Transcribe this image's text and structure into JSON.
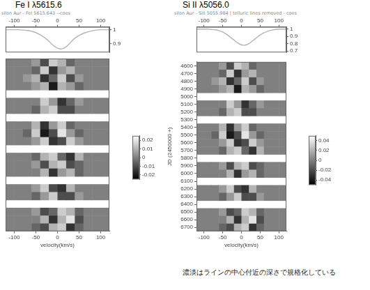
{
  "chart_data": [
    {
      "type": "heatmap",
      "title": "Fe I λ5615.6",
      "subtitle": "silon Aur - FeI 5615.643 --coes",
      "x_label": "velocity(km/s)",
      "xlim": [
        -120,
        120
      ],
      "xticks": [
        -100,
        -50,
        0,
        50,
        100
      ],
      "ylim": [
        6750,
        4550
      ],
      "grid": false,
      "tick_labels": "x",
      "profile": {
        "type": "line",
        "color": "#b4b4b4",
        "x": [
          -120,
          -110,
          -100,
          -90,
          -80,
          -70,
          -60,
          -50,
          -40,
          -30,
          -20,
          -10,
          0,
          10,
          20,
          30,
          40,
          50,
          60,
          70,
          80,
          90,
          100,
          110,
          120
        ],
        "values": [
          1,
          1,
          1,
          1,
          0.998,
          0.995,
          0.99,
          0.98,
          0.965,
          0.945,
          0.92,
          0.89,
          0.87,
          0.865,
          0.88,
          0.91,
          0.94,
          0.96,
          0.975,
          0.985,
          0.993,
          0.998,
          1,
          1,
          1
        ],
        "ylim": [
          0.84,
          1.02
        ],
        "yticks": [
          0.9,
          1
        ]
      },
      "cells": {
        "x": [
          -110,
          -90,
          -70,
          -50,
          -30,
          -10,
          10,
          30,
          50,
          70,
          90,
          110
        ],
        "y": [
          4600,
          4700,
          4800,
          4900,
          5000,
          5100,
          5200,
          5300,
          5400,
          5500,
          5600,
          5700,
          5800,
          5900,
          6000,
          6100,
          6200,
          6300,
          6400,
          6500,
          6600,
          6700
        ],
        "values": [
          [
            0,
            0,
            0,
            0.005,
            -0.01,
            0.015,
            0.01,
            -0.005,
            0,
            0,
            0,
            0
          ],
          [
            0,
            0,
            0,
            -0.005,
            0.015,
            -0.015,
            0.005,
            0.01,
            0,
            0,
            0,
            0
          ],
          [
            0,
            0,
            0.005,
            0.01,
            -0.015,
            -0.005,
            0.015,
            -0.01,
            0.005,
            0,
            0,
            0
          ],
          [
            0,
            0,
            0,
            0.005,
            0.01,
            -0.02,
            0.01,
            0.005,
            -0.005,
            0,
            0,
            0
          ],
          null,
          [
            0,
            0,
            0,
            0,
            0.015,
            0.005,
            -0.015,
            -0.005,
            0.005,
            0,
            0,
            0
          ],
          [
            0,
            0,
            0,
            -0.005,
            0.01,
            0.015,
            -0.01,
            -0.01,
            0,
            0,
            0,
            0
          ],
          null,
          [
            0,
            0,
            0,
            0.01,
            -0.015,
            0.005,
            0.015,
            -0.005,
            0,
            0,
            0,
            0
          ],
          [
            0,
            0,
            -0.005,
            0.015,
            -0.02,
            -0.01,
            0.02,
            0.005,
            -0.005,
            0,
            0,
            0
          ],
          [
            0,
            0,
            0,
            0.005,
            0.015,
            -0.015,
            -0.01,
            0.015,
            0.005,
            0,
            0,
            0
          ],
          null,
          [
            0,
            0,
            0,
            -0.005,
            0.01,
            0.015,
            -0.005,
            -0.015,
            0.01,
            0,
            0,
            0
          ],
          [
            0,
            0,
            0,
            0.005,
            -0.01,
            0.01,
            0.015,
            -0.01,
            -0.005,
            0,
            0,
            0
          ],
          [
            0,
            0,
            0,
            0,
            0.01,
            -0.015,
            0.005,
            0.01,
            -0.005,
            0,
            0,
            0
          ],
          null,
          [
            0,
            0,
            0,
            0.005,
            0.015,
            -0.01,
            -0.015,
            0.01,
            0,
            0,
            0,
            0
          ],
          [
            0,
            0,
            0,
            -0.005,
            0.005,
            0.015,
            -0.01,
            -0.01,
            0.005,
            0,
            0,
            0
          ],
          null,
          [
            0,
            0,
            0,
            0.005,
            -0.01,
            -0.005,
            0.015,
            0.01,
            -0.005,
            0,
            0,
            0
          ],
          [
            0,
            0,
            0,
            0,
            0.01,
            -0.015,
            0.01,
            0.02,
            -0.01,
            0,
            0,
            0
          ],
          [
            0,
            0,
            0,
            -0.005,
            -0.01,
            0.01,
            0.015,
            -0.015,
            -0.005,
            0,
            0,
            0
          ]
        ]
      },
      "colorbar": {
        "range": [
          -0.025,
          0.025
        ],
        "ticks": [
          -0.02,
          -0.01,
          0,
          0.01,
          0.02
        ]
      }
    },
    {
      "type": "heatmap",
      "title": "Si II λ5056.0",
      "subtitle": "silon Aur - SiII 5055.984 | telluric lines removed - coes",
      "x_label": "velocity(km/s)",
      "y_label": "JD (2450000 +)",
      "xlim": [
        -120,
        120
      ],
      "xticks": [
        -100,
        -50,
        0,
        50,
        100
      ],
      "ylim": [
        6750,
        4550
      ],
      "yticks": [
        4600,
        4700,
        4800,
        4900,
        5000,
        5100,
        5200,
        5300,
        5400,
        5500,
        5600,
        5700,
        5800,
        5900,
        6000,
        6100,
        6200,
        6300,
        6400,
        6500,
        6600,
        6700
      ],
      "grid": false,
      "profile": {
        "type": "line",
        "color": "#b4b4b4",
        "x": [
          -120,
          -110,
          -100,
          -90,
          -80,
          -70,
          -60,
          -50,
          -40,
          -30,
          -20,
          -10,
          0,
          10,
          20,
          30,
          40,
          50,
          60,
          70,
          80,
          90,
          100,
          110,
          120
        ],
        "values": [
          1,
          1,
          1,
          1,
          0.995,
          0.99,
          0.98,
          0.96,
          0.93,
          0.89,
          0.85,
          0.81,
          0.785,
          0.78,
          0.8,
          0.84,
          0.88,
          0.92,
          0.95,
          0.97,
          0.985,
          0.995,
          1,
          1,
          1
        ],
        "ylim": [
          0.68,
          1.03
        ],
        "yticks": [
          0.7,
          0.8,
          0.9,
          1
        ]
      },
      "cells": {
        "x": [
          -110,
          -90,
          -70,
          -50,
          -30,
          -10,
          10,
          30,
          50,
          70,
          90,
          110
        ],
        "y": [
          4600,
          4700,
          4800,
          4900,
          5000,
          5100,
          5200,
          5300,
          5400,
          5500,
          5600,
          5700,
          5800,
          5900,
          6000,
          6100,
          6200,
          6300,
          6400,
          6500,
          6600,
          6700
        ],
        "values": [
          [
            0,
            0,
            0,
            0.01,
            -0.02,
            0.03,
            0.02,
            -0.01,
            0,
            0,
            0,
            0
          ],
          [
            0,
            0,
            0,
            -0.01,
            0.03,
            -0.03,
            0.01,
            0.02,
            0,
            0,
            0,
            0
          ],
          [
            0,
            0,
            0.01,
            0.02,
            -0.03,
            -0.01,
            0.03,
            -0.02,
            0.01,
            0,
            0,
            0
          ],
          [
            0,
            0,
            0,
            0.01,
            0.02,
            -0.04,
            0.02,
            0.01,
            -0.01,
            0,
            0,
            0
          ],
          null,
          [
            0,
            0,
            0,
            0,
            0.03,
            0.01,
            -0.03,
            -0.01,
            0.01,
            0,
            0,
            0
          ],
          [
            0,
            0,
            0,
            -0.01,
            0.02,
            0.03,
            -0.02,
            -0.02,
            0,
            0,
            0,
            0
          ],
          null,
          [
            0,
            0,
            0,
            0.02,
            -0.03,
            0.01,
            0.03,
            -0.01,
            0,
            0,
            0,
            0
          ],
          [
            0,
            0,
            -0.01,
            0.03,
            -0.04,
            -0.02,
            0.04,
            0.01,
            -0.01,
            0,
            0,
            0
          ],
          [
            0,
            0,
            0,
            0.01,
            0.03,
            -0.03,
            -0.02,
            0.03,
            0.01,
            0,
            0,
            0
          ],
          [
            0,
            0,
            0,
            -0.01,
            0.02,
            0.03,
            -0.01,
            -0.03,
            0.02,
            0,
            0,
            0
          ],
          null,
          [
            0,
            0,
            0,
            0.01,
            -0.02,
            0.02,
            0.03,
            -0.02,
            -0.01,
            0,
            0,
            0
          ],
          [
            0,
            0,
            0,
            0,
            0.02,
            -0.03,
            0.01,
            0.02,
            -0.01,
            0,
            0,
            0
          ],
          null,
          [
            0,
            0,
            0,
            0.01,
            0.03,
            -0.02,
            -0.03,
            0.02,
            0,
            0,
            0,
            0
          ],
          [
            0,
            0,
            0,
            -0.01,
            0.01,
            0.03,
            -0.02,
            -0.02,
            0.01,
            0,
            0,
            0
          ],
          null,
          [
            0,
            0,
            0,
            0.01,
            -0.02,
            -0.01,
            0.03,
            0.02,
            -0.01,
            0,
            0,
            0
          ],
          [
            0,
            0,
            0,
            0,
            0.02,
            -0.03,
            0.02,
            0.04,
            -0.02,
            0,
            0,
            0
          ],
          [
            0,
            0,
            0,
            -0.01,
            -0.02,
            0.02,
            0.03,
            -0.03,
            -0.01,
            0,
            0,
            0
          ]
        ]
      },
      "colorbar": {
        "range": [
          -0.05,
          0.05
        ],
        "ticks": [
          -0.04,
          -0.02,
          0,
          0.02,
          0.04
        ]
      }
    }
  ],
  "caption": "濃淡はラインの中心付近の深さで規格化している"
}
